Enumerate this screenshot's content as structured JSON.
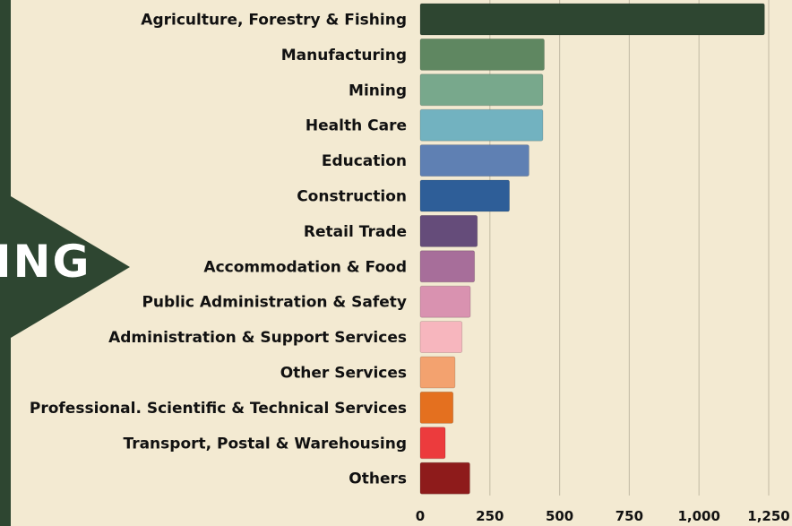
{
  "banner": {
    "text": "ING",
    "color": "#2e4631"
  },
  "chart_data": {
    "type": "bar",
    "orientation": "horizontal",
    "categories": [
      "Agriculture, Forestry & Fishing",
      "Manufacturing",
      "Mining",
      "Health Care",
      "Education",
      "Construction",
      "Retail Trade",
      "Accommodation & Food",
      "Public Administration & Safety",
      "Administration & Support Services",
      "Other Services",
      "Professional. Scientific & Technical Services",
      "Transport, Postal & Warehousing",
      "Others"
    ],
    "values": [
      1235,
      445,
      440,
      440,
      390,
      320,
      205,
      195,
      180,
      150,
      125,
      118,
      90,
      178
    ],
    "colors": [
      "#2e4631",
      "#5f8761",
      "#78a88c",
      "#72b2c0",
      "#5f80b3",
      "#2e5e98",
      "#654c7a",
      "#a76e9a",
      "#d992b0",
      "#f7b6be",
      "#f3a26f",
      "#e4701f",
      "#ec3b3d",
      "#8e1b1b"
    ],
    "xlim": [
      0,
      1250
    ],
    "xticks": [
      0,
      250,
      500,
      750,
      1000,
      1250
    ],
    "xtick_labels": [
      "0",
      "250",
      "500",
      "750",
      "1,000",
      "1,250"
    ],
    "grid": true
  }
}
